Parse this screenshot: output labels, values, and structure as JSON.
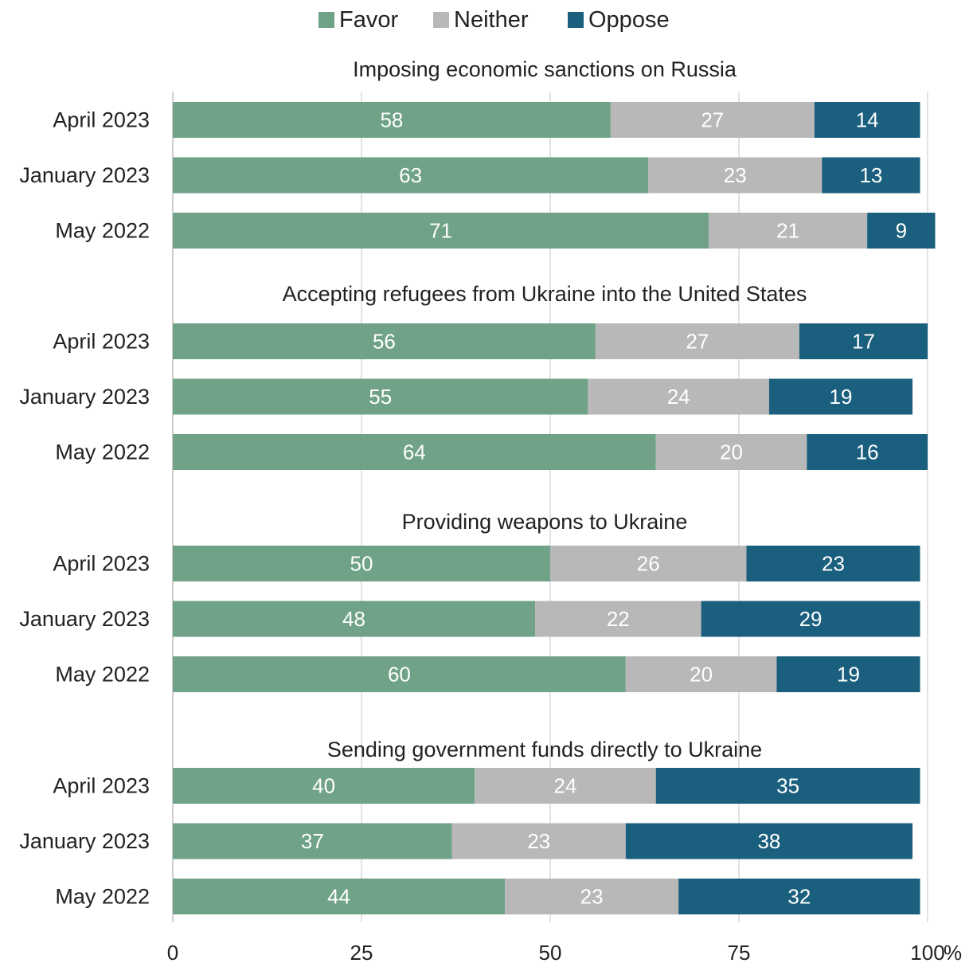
{
  "chart_data": {
    "type": "bar",
    "orientation": "horizontal",
    "stacked": true,
    "legend": {
      "position": "top",
      "items": [
        {
          "name": "Favor",
          "color": "#6fa287"
        },
        {
          "name": "Neither",
          "color": "#b8b8b8"
        },
        {
          "name": "Oppose",
          "color": "#1a5f7e"
        }
      ]
    },
    "x_axis": {
      "ticks": [
        0,
        25,
        50,
        75,
        100
      ],
      "tick_labels": [
        "0",
        "25",
        "50",
        "75",
        "100"
      ],
      "unit": "%",
      "range": [
        0,
        100
      ],
      "gridlines": true
    },
    "groups": [
      {
        "title": "Imposing economic sanctions on Russia",
        "rows": [
          {
            "label": "April 2023",
            "values": [
              58,
              27,
              14
            ]
          },
          {
            "label": "January 2023",
            "values": [
              63,
              23,
              13
            ]
          },
          {
            "label": "May 2022",
            "values": [
              71,
              21,
              9
            ]
          }
        ]
      },
      {
        "title": "Accepting refugees from Ukraine into the United States",
        "rows": [
          {
            "label": "April 2023",
            "values": [
              56,
              27,
              17
            ]
          },
          {
            "label": "January 2023",
            "values": [
              55,
              24,
              19
            ]
          },
          {
            "label": "May 2022",
            "values": [
              64,
              20,
              16
            ]
          }
        ]
      },
      {
        "title": "Providing weapons to Ukraine",
        "rows": [
          {
            "label": "April 2023",
            "values": [
              50,
              26,
              23
            ]
          },
          {
            "label": "January 2023",
            "values": [
              48,
              22,
              29
            ]
          },
          {
            "label": "May 2022",
            "values": [
              60,
              20,
              19
            ]
          }
        ]
      },
      {
        "title": "Sending government funds directly to Ukraine",
        "rows": [
          {
            "label": "April 2023",
            "values": [
              40,
              24,
              35
            ]
          },
          {
            "label": "January 2023",
            "values": [
              37,
              23,
              38
            ]
          },
          {
            "label": "May 2022",
            "values": [
              44,
              23,
              32
            ]
          }
        ]
      }
    ]
  }
}
